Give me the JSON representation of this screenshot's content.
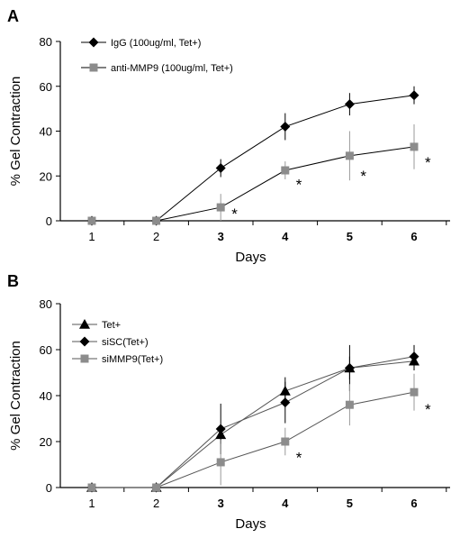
{
  "chart_data": [
    {
      "type": "line",
      "panel_label": "A",
      "x": [
        1,
        2,
        3,
        4,
        5,
        6
      ],
      "xlabel": "Days",
      "ylabel": "% Gel Contraction",
      "ylim": [
        0,
        80
      ],
      "yticks": [
        0,
        20,
        40,
        60,
        80
      ],
      "bold_xticks": [
        3,
        4,
        5,
        6
      ],
      "grid": false,
      "legend_position": "top-left",
      "series": [
        {
          "name": "IgG (100ug/ml, Tet+)",
          "marker": "diamond",
          "color": "#000000",
          "line_color": "#000000",
          "values": [
            0,
            0,
            23.5,
            42,
            52,
            56
          ],
          "errors": [
            0,
            0,
            4,
            6,
            5,
            4
          ]
        },
        {
          "name": "anti-MMP9 (100ug/ml, Tet+)",
          "marker": "square",
          "color": "#8c8c8c",
          "line_color": "#000000",
          "values": [
            0,
            0,
            6,
            22.5,
            29,
            33
          ],
          "errors": [
            0,
            0,
            6,
            4,
            11,
            10
          ]
        }
      ],
      "annotations": [
        {
          "text": "*",
          "x": 3,
          "y": 4
        },
        {
          "text": "*",
          "x": 4,
          "y": 17
        },
        {
          "text": "*",
          "x": 5,
          "y": 21
        },
        {
          "text": "*",
          "x": 6,
          "y": 27
        }
      ]
    },
    {
      "type": "line",
      "panel_label": "B",
      "x": [
        1,
        2,
        3,
        4,
        5,
        6
      ],
      "xlabel": "Days",
      "ylabel": "% Gel Contraction",
      "ylim": [
        0,
        80
      ],
      "yticks": [
        0,
        20,
        40,
        60,
        80
      ],
      "bold_xticks": [
        3,
        4,
        5,
        6
      ],
      "grid": false,
      "legend_position": "top-left",
      "series": [
        {
          "name": "Tet+",
          "marker": "triangle",
          "color": "#000000",
          "line_color": "#555555",
          "values": [
            0,
            0,
            23,
            42,
            52,
            55
          ],
          "errors": [
            0,
            0,
            4,
            6,
            5,
            4
          ]
        },
        {
          "name": "siSC(Tet+)",
          "marker": "diamond",
          "color": "#000000",
          "line_color": "#555555",
          "values": [
            0,
            0,
            25.5,
            37,
            52,
            57
          ],
          "errors": [
            0,
            0,
            11,
            9,
            10,
            5
          ]
        },
        {
          "name": "siMMP9(Tet+)",
          "marker": "square",
          "color": "#8c8c8c",
          "line_color": "#555555",
          "values": [
            0,
            0,
            11,
            20,
            36,
            41.5
          ],
          "errors": [
            0,
            0,
            10,
            6,
            9,
            8
          ]
        }
      ],
      "annotations": [
        {
          "text": "*",
          "x": 4,
          "y": 14
        },
        {
          "text": "*",
          "x": 6,
          "y": 35
        }
      ]
    }
  ]
}
